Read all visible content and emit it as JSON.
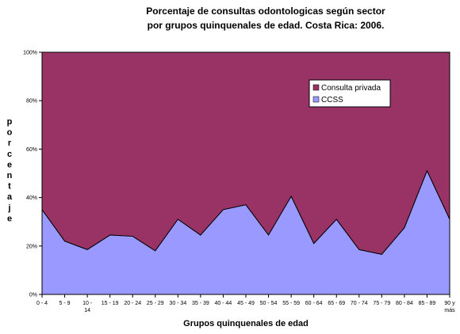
{
  "chart_data": {
    "type": "area",
    "stacked": true,
    "percent": true,
    "title_line1": "Porcentaje de consultas odontologicas según sector",
    "title_line2": "por grupos quinquenales de edad. Costa Rica: 2006.",
    "xlabel": "Grupos quinquenales de edad",
    "ylabel": "porcentaje",
    "ylim": [
      0,
      100
    ],
    "yticks": [
      "0%",
      "20%",
      "40%",
      "60%",
      "80%",
      "100%"
    ],
    "categories": [
      [
        "0 - 4"
      ],
      [
        "5 - 9"
      ],
      [
        "10 -",
        "14"
      ],
      [
        "15 - 19"
      ],
      [
        "20 - 24"
      ],
      [
        "25 - 29"
      ],
      [
        "30 - 34"
      ],
      [
        "35 - 39"
      ],
      [
        "40 - 44"
      ],
      [
        "45 - 49"
      ],
      [
        "50 - 54"
      ],
      [
        "55 - 59"
      ],
      [
        "60 - 64"
      ],
      [
        "65 - 69"
      ],
      [
        "70 - 74"
      ],
      [
        "75 - 79"
      ],
      [
        "80 - 84"
      ],
      [
        "85 - 89"
      ],
      [
        "90 y",
        "más"
      ]
    ],
    "series": [
      {
        "name": "CCSS",
        "color": "#9999ff",
        "values": [
          35,
          22,
          18.5,
          24.5,
          24,
          18,
          31,
          24.5,
          35,
          37,
          24.5,
          40.5,
          21,
          31,
          18.5,
          16.5,
          27.5,
          51,
          31
        ]
      },
      {
        "name": "Consulta privada",
        "color": "#993366",
        "values": [
          65,
          78,
          81.5,
          75.5,
          76,
          82,
          69,
          75.5,
          65,
          63,
          75.5,
          59.5,
          79,
          69,
          81.5,
          83.5,
          72.5,
          49,
          69
        ]
      }
    ],
    "legend_order": [
      "Consulta privada",
      "CCSS"
    ],
    "legend_position": "upper-right"
  }
}
